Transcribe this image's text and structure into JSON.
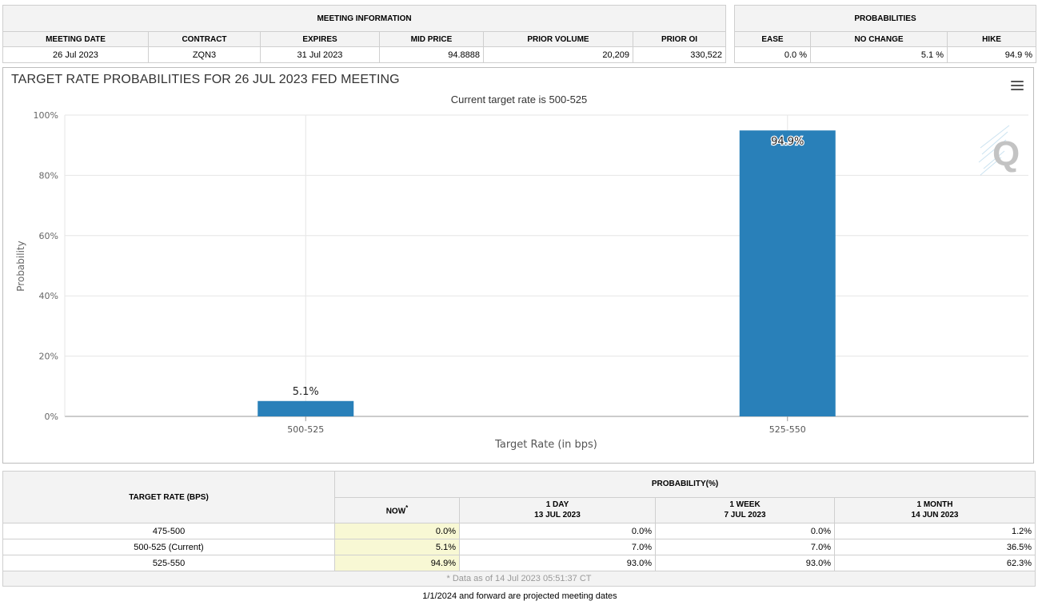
{
  "meeting_info": {
    "title": "MEETING INFORMATION",
    "columns": [
      "MEETING DATE",
      "CONTRACT",
      "EXPIRES",
      "MID PRICE",
      "PRIOR VOLUME",
      "PRIOR OI"
    ],
    "values": [
      "26 Jul 2023",
      "ZQN3",
      "31 Jul 2023",
      "94.8888",
      "20,209",
      "330,522"
    ]
  },
  "probabilities": {
    "title": "PROBABILITIES",
    "columns": [
      "EASE",
      "NO CHANGE",
      "HIKE"
    ],
    "values": [
      "0.0 %",
      "5.1 %",
      "94.9 %"
    ]
  },
  "chart_data": {
    "type": "bar",
    "title": "TARGET RATE PROBABILITIES FOR 26 JUL 2023 FED MEETING",
    "subtitle": "Current target rate is 500-525",
    "xlabel": "Target Rate (in bps)",
    "ylabel": "Probability",
    "categories": [
      "500-525",
      "525-550"
    ],
    "values": [
      5.1,
      94.9
    ],
    "data_labels": [
      "5.1%",
      "94.9%"
    ],
    "ylim": [
      0,
      100
    ],
    "yticks": [
      0,
      20,
      40,
      60,
      80,
      100
    ],
    "ytick_labels": [
      "0%",
      "20%",
      "40%",
      "60%",
      "80%",
      "100%"
    ],
    "bar_color": "#2980b9",
    "grid": true,
    "legend": "none"
  },
  "rate_table": {
    "target_header": "TARGET RATE (BPS)",
    "probability_header": "PROBABILITY(%)",
    "now_header": "NOW",
    "now_marker": "*",
    "periods": [
      {
        "label": "1 DAY",
        "date": "13 JUL 2023"
      },
      {
        "label": "1 WEEK",
        "date": "7 JUL 2023"
      },
      {
        "label": "1 MONTH",
        "date": "14 JUN 2023"
      }
    ],
    "rows": [
      {
        "rate": "475-500",
        "now": "0.0%",
        "day": "0.0%",
        "week": "0.0%",
        "month": "1.2%"
      },
      {
        "rate": "500-525 (Current)",
        "now": "5.1%",
        "day": "7.0%",
        "week": "7.0%",
        "month": "36.5%"
      },
      {
        "rate": "525-550",
        "now": "94.9%",
        "day": "93.0%",
        "week": "93.0%",
        "month": "62.3%"
      }
    ],
    "data_note": "* Data as of 14 Jul 2023 05:51:37 CT"
  },
  "footer_note": "1/1/2024 and forward are projected meeting dates"
}
